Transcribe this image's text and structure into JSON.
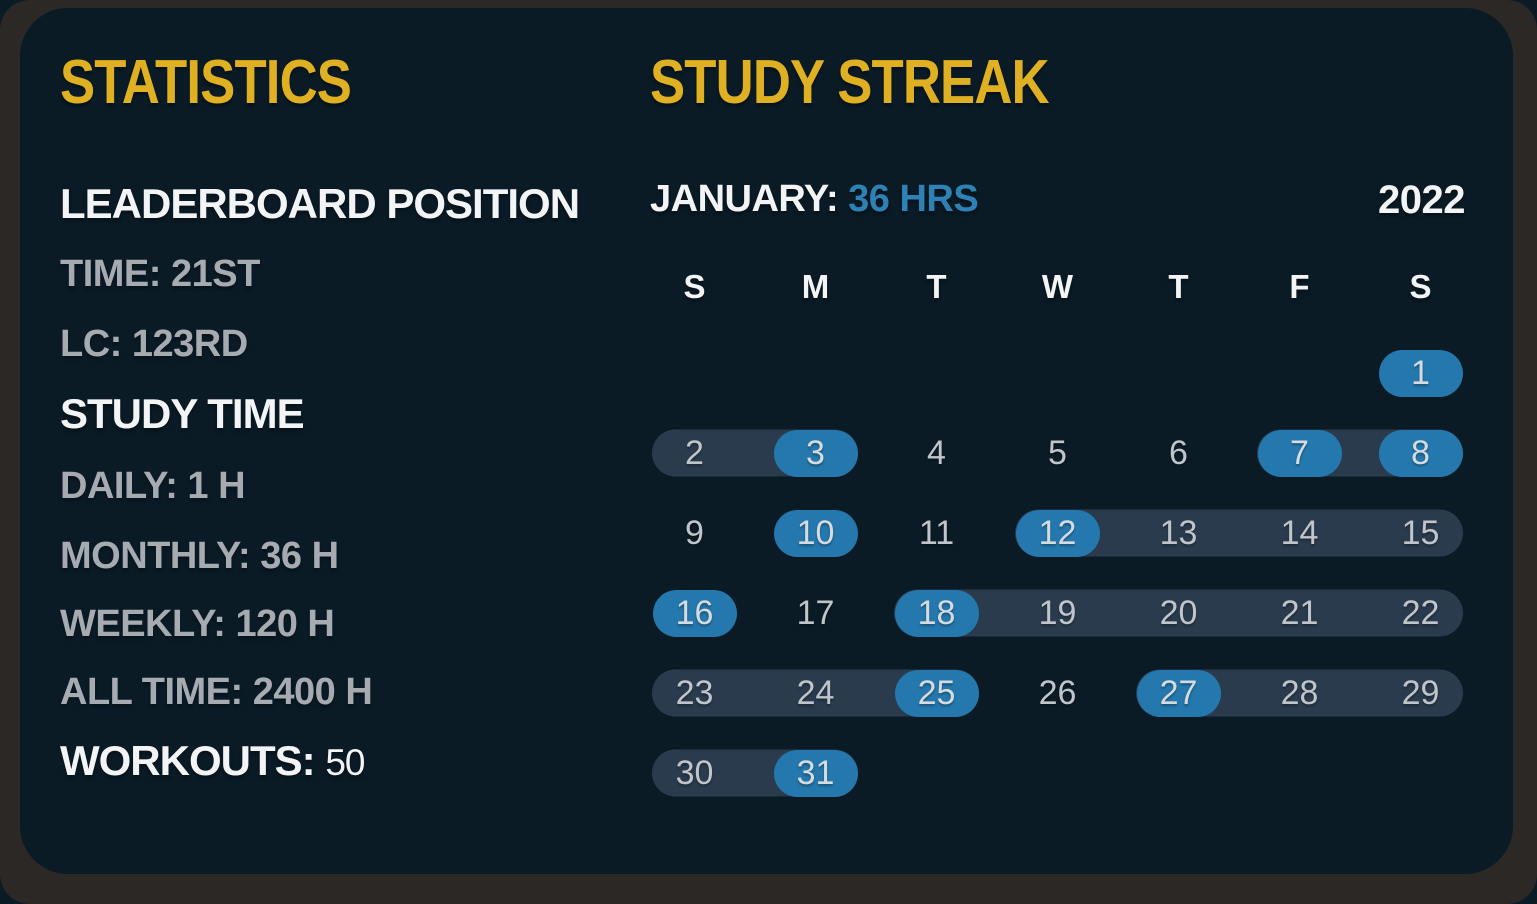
{
  "statistics": {
    "title": "STATISTICS",
    "sections": [
      {
        "heading": "LEADERBOARD POSITION",
        "items": [
          {
            "label": "TIME:",
            "value": "21ST"
          },
          {
            "label": "LC:",
            "value": "123RD"
          }
        ]
      },
      {
        "heading": "STUDY TIME",
        "items": [
          {
            "label": "DAILY:",
            "value": "1 H"
          },
          {
            "label": "MONTHLY:",
            "value": "36 H"
          },
          {
            "label": "WEEKLY:",
            "value": "120 H"
          },
          {
            "label": "ALL TIME:",
            "value": "2400 H"
          }
        ]
      }
    ],
    "workouts": {
      "label": "WORKOUTS:",
      "value": "50"
    }
  },
  "study_streak": {
    "title": "STUDY STREAK",
    "month": {
      "label": "JANUARY:",
      "hours": "36 HRS"
    },
    "year": "2022",
    "day_headers": [
      "S",
      "M",
      "T",
      "W",
      "T",
      "F",
      "S"
    ],
    "weeks": [
      {
        "streaks": [],
        "days": [
          {
            "date": 1,
            "col": 7,
            "hl": true
          }
        ]
      },
      {
        "streaks": [
          [
            1,
            2
          ],
          [
            6,
            7
          ]
        ],
        "days": [
          {
            "date": 2,
            "col": 1,
            "hl": false
          },
          {
            "date": 3,
            "col": 2,
            "hl": true
          },
          {
            "date": 4,
            "col": 3,
            "hl": false
          },
          {
            "date": 5,
            "col": 4,
            "hl": false
          },
          {
            "date": 6,
            "col": 5,
            "hl": false
          },
          {
            "date": 7,
            "col": 6,
            "hl": true
          },
          {
            "date": 8,
            "col": 7,
            "hl": true
          }
        ]
      },
      {
        "streaks": [
          [
            4,
            7
          ]
        ],
        "days": [
          {
            "date": 9,
            "col": 1,
            "hl": false
          },
          {
            "date": 10,
            "col": 2,
            "hl": true
          },
          {
            "date": 11,
            "col": 3,
            "hl": false
          },
          {
            "date": 12,
            "col": 4,
            "hl": true
          },
          {
            "date": 13,
            "col": 5,
            "hl": false
          },
          {
            "date": 14,
            "col": 6,
            "hl": false
          },
          {
            "date": 15,
            "col": 7,
            "hl": false
          }
        ]
      },
      {
        "streaks": [
          [
            3,
            7
          ]
        ],
        "days": [
          {
            "date": 16,
            "col": 1,
            "hl": true
          },
          {
            "date": 17,
            "col": 2,
            "hl": false
          },
          {
            "date": 18,
            "col": 3,
            "hl": true
          },
          {
            "date": 19,
            "col": 4,
            "hl": false
          },
          {
            "date": 20,
            "col": 5,
            "hl": false
          },
          {
            "date": 21,
            "col": 6,
            "hl": false
          },
          {
            "date": 22,
            "col": 7,
            "hl": false
          }
        ]
      },
      {
        "streaks": [
          [
            1,
            3
          ],
          [
            5,
            7
          ]
        ],
        "days": [
          {
            "date": 23,
            "col": 1,
            "hl": false
          },
          {
            "date": 24,
            "col": 2,
            "hl": false
          },
          {
            "date": 25,
            "col": 3,
            "hl": true
          },
          {
            "date": 26,
            "col": 4,
            "hl": false
          },
          {
            "date": 27,
            "col": 5,
            "hl": true
          },
          {
            "date": 28,
            "col": 6,
            "hl": false
          },
          {
            "date": 29,
            "col": 7,
            "hl": false
          }
        ]
      },
      {
        "streaks": [
          [
            1,
            2
          ]
        ],
        "days": [
          {
            "date": 30,
            "col": 1,
            "hl": false
          },
          {
            "date": 31,
            "col": 2,
            "hl": true
          }
        ]
      }
    ]
  },
  "colors": {
    "accent_yellow": "#dfb122",
    "accent_blue": "#2478ad",
    "hours_blue": "#2e81b5",
    "streak_pill": "#2a3b4e",
    "card_bg": "#0a1b26",
    "frame_brown": "#2b2825",
    "text_white": "#f2f4f6",
    "text_gray": "#a6abb2",
    "calendar_number": "#c0c5cb"
  }
}
